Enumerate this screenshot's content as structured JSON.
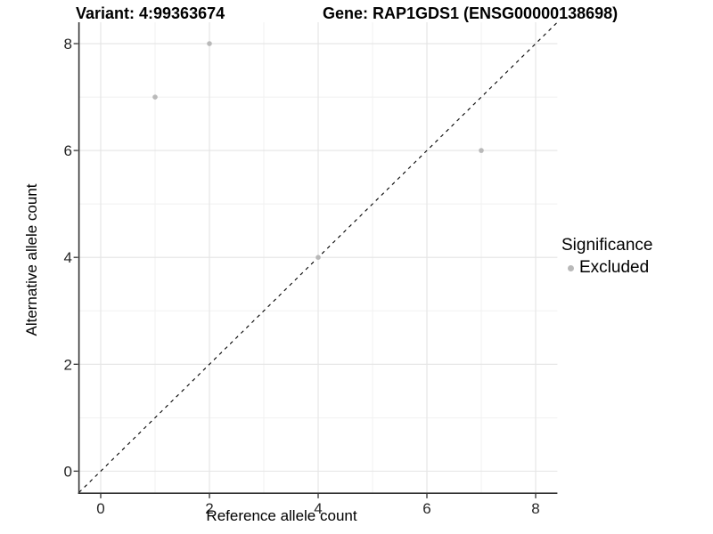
{
  "figure": {
    "title_left": "Variant: 4:99363674",
    "title_right": "Gene: RAP1GDS1 (ENSG00000138698)"
  },
  "chart_data": {
    "type": "scatter",
    "title_left": "Variant: 4:99363674",
    "title_right": "Gene: RAP1GDS1 (ENSG00000138698)",
    "xlabel": "Reference allele count",
    "ylabel": "Alternative allele count",
    "xlim": [
      -0.4,
      8.4
    ],
    "ylim": [
      -0.4,
      8.4
    ],
    "x_ticks": [
      0,
      2,
      4,
      6,
      8
    ],
    "y_ticks": [
      0,
      2,
      4,
      6,
      8
    ],
    "x_minor_ticks": [
      1,
      3,
      5,
      7
    ],
    "y_minor_ticks": [
      1,
      3,
      5,
      7
    ],
    "grid": "major+minor",
    "identity_line": {
      "equation": "y = x",
      "style": "dashed",
      "color": "#000000"
    },
    "series": [
      {
        "name": "Excluded",
        "color": "#b9b9b9",
        "points": [
          {
            "x": 1,
            "y": 7
          },
          {
            "x": 2,
            "y": 8
          },
          {
            "x": 4,
            "y": 4
          },
          {
            "x": 7,
            "y": 6
          }
        ]
      }
    ],
    "legend": {
      "title": "Significance",
      "position": "right",
      "items": [
        {
          "label": "Excluded",
          "color": "#b9b9b9"
        }
      ]
    }
  },
  "style": {
    "background": "#ffffff",
    "grid_major": "#e4e4e4",
    "grid_minor": "#f1f1f1",
    "axis_line": "#333333",
    "tick_mark": "#333333",
    "tick_label_color": "#262626",
    "point_color": "#b9b9b9",
    "dash_color": "#000000"
  }
}
